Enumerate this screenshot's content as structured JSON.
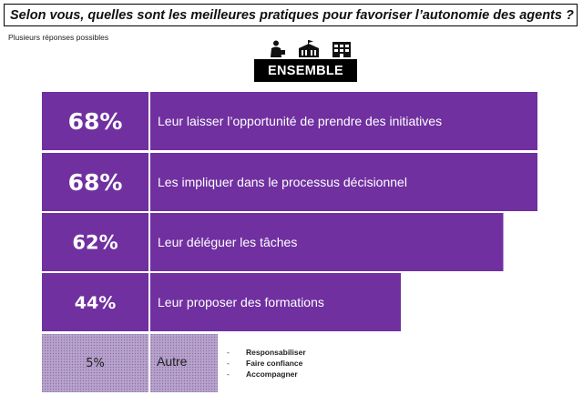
{
  "title": "Selon vous, quelles sont les meilleures pratiques pour favoriser l’autonomie des agents ?",
  "subtitle": "Plusieurs réponses possibles",
  "group_label": "ENSEMBLE",
  "icons": [
    "person-icon",
    "city-hall-icon",
    "building-icon"
  ],
  "colors": {
    "bar": "#7030a0",
    "other_bar": "#b4a0c8",
    "text_on_bar": "#ffffff"
  },
  "chart_data": {
    "type": "bar",
    "orientation": "horizontal",
    "unit": "%",
    "max": 100,
    "categories": [
      "Leur laisser l’opportunité de prendre des initiatives",
      "Les impliquer dans le processus décisionnel",
      "Leur déléguer les tâches",
      "Leur proposer des formations",
      "Autre"
    ],
    "values": [
      68,
      68,
      62,
      44,
      5
    ],
    "value_labels": [
      "68%",
      "68%",
      "62%",
      "44%",
      "5%"
    ],
    "other_details": [
      "Responsabiliser",
      "Faire confiance",
      "Accompagner"
    ]
  }
}
